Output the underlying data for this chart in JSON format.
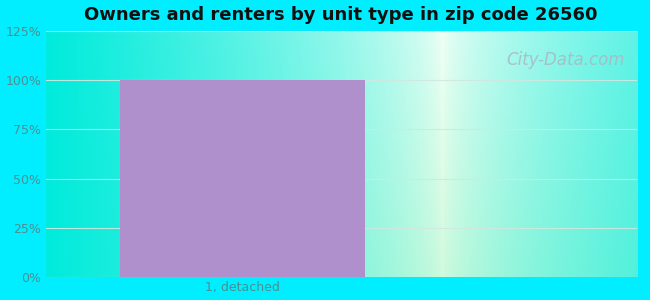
{
  "title": "Owners and renters by unit type in zip code 26560",
  "categories": [
    "1, detached"
  ],
  "values": [
    100
  ],
  "bar_color": "#b090cc",
  "bar_alpha": 1.0,
  "ylim": [
    0,
    125
  ],
  "yticks": [
    0,
    25,
    50,
    75,
    100,
    125
  ],
  "ytick_labels": [
    "0%",
    "25%",
    "50%",
    "75%",
    "100%",
    "125%"
  ],
  "title_fontsize": 13,
  "tick_fontsize": 9,
  "bg_outer_color": "#00eeff",
  "watermark": "City-Data.com",
  "watermark_color": "#aab8c2",
  "watermark_fontsize": 12,
  "tick_color": "#4a9090",
  "gridline_color": "#d0e8e0",
  "bar_width": 0.62
}
